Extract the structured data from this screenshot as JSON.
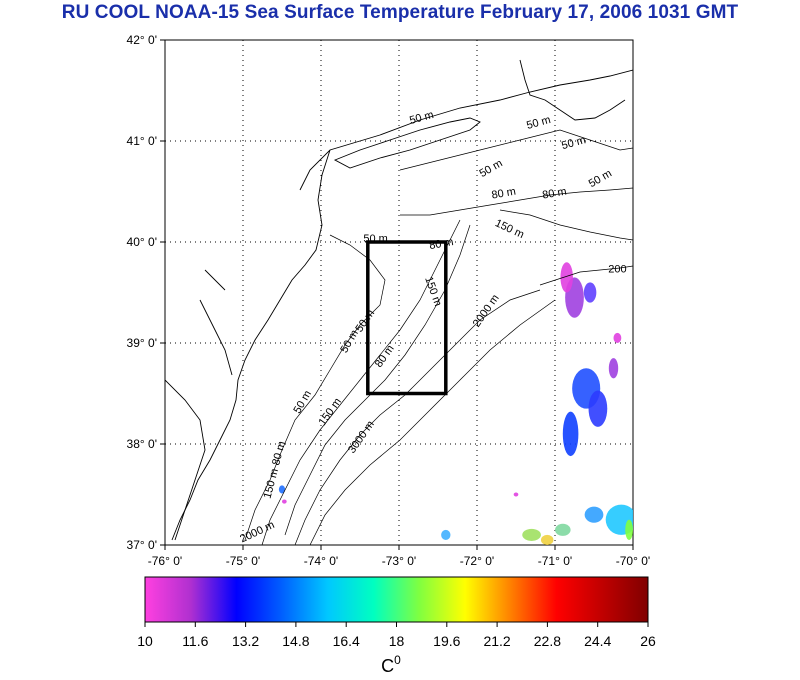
{
  "title": "RU COOL  NOAA-15 Sea Surface Temperature February 17, 2006 1031 GMT",
  "map": {
    "lon_range": [
      -76,
      -70
    ],
    "lat_range": [
      37,
      42
    ],
    "x_ticks": [
      "-76° 0'",
      "-75° 0'",
      "-74° 0'",
      "-73° 0'",
      "-72° 0'",
      "-71° 0'",
      "-70° 0'"
    ],
    "y_ticks": [
      "42° 0'",
      "41° 0'",
      "40° 0'",
      "39° 0'",
      "38° 0'",
      "37° 0'"
    ],
    "grid": "dotted",
    "study_box": {
      "lon": [
        -73.4,
        -72.4
      ],
      "lat": [
        38.5,
        40.0
      ]
    },
    "contour_labels": [
      {
        "text": "50 m",
        "lon": -72.7,
        "lat": 41.2,
        "rot": -15
      },
      {
        "text": "50 m",
        "lon": -71.2,
        "lat": 41.15,
        "rot": -15
      },
      {
        "text": "50 m",
        "lon": -70.75,
        "lat": 40.95,
        "rot": -15
      },
      {
        "text": "50 m",
        "lon": -71.8,
        "lat": 40.7,
        "rot": -30
      },
      {
        "text": "50 m",
        "lon": -70.4,
        "lat": 40.6,
        "rot": -30
      },
      {
        "text": "80 m",
        "lon": -71.65,
        "lat": 40.45,
        "rot": -10
      },
      {
        "text": "80 m",
        "lon": -71.0,
        "lat": 40.45,
        "rot": -10
      },
      {
        "text": "150 m",
        "lon": -71.6,
        "lat": 40.1,
        "rot": 25
      },
      {
        "text": "80 m",
        "lon": -72.45,
        "lat": 39.95,
        "rot": -10
      },
      {
        "text": "50 m",
        "lon": -73.3,
        "lat": 40.0,
        "rot": 0
      },
      {
        "text": "200",
        "lon": -70.2,
        "lat": 39.7,
        "rot": 0
      },
      {
        "text": "150 m",
        "lon": -72.6,
        "lat": 39.5,
        "rot": 70
      },
      {
        "text": "2000 m",
        "lon": -71.85,
        "lat": 39.3,
        "rot": -55
      },
      {
        "text": "50 m",
        "lon": -73.4,
        "lat": 39.2,
        "rot": -55
      },
      {
        "text": "50 m",
        "lon": -73.6,
        "lat": 39.0,
        "rot": -60
      },
      {
        "text": "80 m",
        "lon": -73.15,
        "lat": 38.85,
        "rot": -55
      },
      {
        "text": "50 m",
        "lon": -74.2,
        "lat": 38.4,
        "rot": -60
      },
      {
        "text": "150 m",
        "lon": -73.85,
        "lat": 38.3,
        "rot": -55
      },
      {
        "text": "3000 m",
        "lon": -73.45,
        "lat": 38.05,
        "rot": -55
      },
      {
        "text": "80 m",
        "lon": -74.5,
        "lat": 37.9,
        "rot": -75
      },
      {
        "text": "150 m",
        "lon": -74.6,
        "lat": 37.6,
        "rot": -75
      },
      {
        "text": "2000 m",
        "lon": -74.8,
        "lat": 37.1,
        "rot": -25
      }
    ],
    "sst_patches": [
      {
        "lon": -70.75,
        "lat": 39.45,
        "rx": 0.12,
        "ry": 0.2,
        "color": "#a040e0"
      },
      {
        "lon": -70.85,
        "lat": 39.65,
        "rx": 0.08,
        "ry": 0.15,
        "color": "#e040e0"
      },
      {
        "lon": -70.55,
        "lat": 39.5,
        "rx": 0.08,
        "ry": 0.1,
        "color": "#6040ff"
      },
      {
        "lon": -70.6,
        "lat": 38.55,
        "rx": 0.18,
        "ry": 0.2,
        "color": "#2050ff"
      },
      {
        "lon": -70.45,
        "lat": 38.35,
        "rx": 0.12,
        "ry": 0.18,
        "color": "#2c3cff"
      },
      {
        "lon": -70.8,
        "lat": 38.1,
        "rx": 0.1,
        "ry": 0.22,
        "color": "#1040ff"
      },
      {
        "lon": -70.25,
        "lat": 38.75,
        "rx": 0.06,
        "ry": 0.1,
        "color": "#a040e0"
      },
      {
        "lon": -70.2,
        "lat": 39.05,
        "rx": 0.05,
        "ry": 0.05,
        "color": "#e040e0"
      },
      {
        "lon": -70.15,
        "lat": 37.25,
        "rx": 0.2,
        "ry": 0.15,
        "color": "#20c8ff"
      },
      {
        "lon": -70.5,
        "lat": 37.3,
        "rx": 0.12,
        "ry": 0.08,
        "color": "#30a0ff"
      },
      {
        "lon": -70.9,
        "lat": 37.15,
        "rx": 0.1,
        "ry": 0.06,
        "color": "#80d8a0"
      },
      {
        "lon": -71.3,
        "lat": 37.1,
        "rx": 0.12,
        "ry": 0.06,
        "color": "#a0e060"
      },
      {
        "lon": -71.1,
        "lat": 37.05,
        "rx": 0.08,
        "ry": 0.05,
        "color": "#f0d040"
      },
      {
        "lon": -72.4,
        "lat": 37.1,
        "rx": 0.06,
        "ry": 0.05,
        "color": "#40b0ff"
      },
      {
        "lon": -70.05,
        "lat": 37.15,
        "rx": 0.05,
        "ry": 0.1,
        "color": "#80ff40"
      },
      {
        "lon": -74.5,
        "lat": 37.55,
        "rx": 0.04,
        "ry": 0.04,
        "color": "#2070ff"
      },
      {
        "lon": -74.47,
        "lat": 37.43,
        "rx": 0.03,
        "ry": 0.02,
        "color": "#e040e0"
      },
      {
        "lon": -71.5,
        "lat": 37.5,
        "rx": 0.03,
        "ry": 0.02,
        "color": "#e040e0"
      }
    ]
  },
  "colorbar": {
    "ticks": [
      "10",
      "11.6",
      "13.2",
      "14.8",
      "16.4",
      "18",
      "19.6",
      "21.2",
      "22.8",
      "24.4",
      "26"
    ],
    "min": 10,
    "max": 26,
    "unit": "C",
    "unit_sup": "0",
    "colors": [
      "#ff40e0",
      "#b030d0",
      "#0000ff",
      "#0060ff",
      "#00c8ff",
      "#00ffc0",
      "#80ff40",
      "#ffff00",
      "#ff8000",
      "#ff0000",
      "#c00000",
      "#800000"
    ]
  }
}
